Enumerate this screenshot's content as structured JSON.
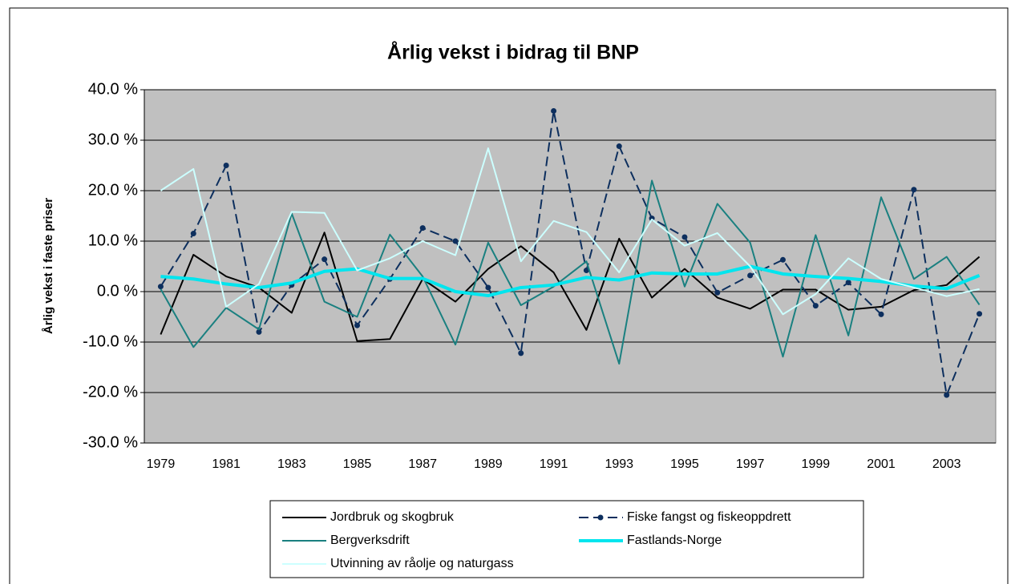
{
  "chart_data": {
    "type": "line",
    "title": "Årlig vekst i bidrag til BNP",
    "y_label": "Årlig vekst i faste priser",
    "categories": [
      "1979",
      null,
      "1981",
      null,
      "1983",
      null,
      "1985",
      null,
      "1987",
      null,
      "1989",
      null,
      "1991",
      null,
      "1993",
      null,
      "1995",
      null,
      "1997",
      null,
      "1999",
      null,
      "2001",
      null,
      "2003",
      null
    ],
    "ylim": [
      -30,
      40
    ],
    "yticks": [
      {
        "value": -30,
        "label": "-30.0 %"
      },
      {
        "value": -20,
        "label": "-20.0 %"
      },
      {
        "value": -10,
        "label": "-10.0 %"
      },
      {
        "value": 0,
        "label": "0.0 %"
      },
      {
        "value": 10,
        "label": "10.0 %"
      },
      {
        "value": 20,
        "label": "20.0 %"
      },
      {
        "value": 30,
        "label": "30.0 %"
      },
      {
        "value": 40,
        "label": "40.0 %"
      }
    ],
    "grid": true,
    "series": [
      {
        "name": "Jordbruk og skogbruk",
        "color": "#000000",
        "linestyle": "solid",
        "values": [
          -8.5,
          7.3,
          3,
          0.8,
          -4.2,
          11.7,
          -9.8,
          -9.4,
          2.5,
          -2,
          4.5,
          9,
          3.8,
          -7.6,
          10.5,
          -1.2,
          4.5,
          -1.2,
          -3.4,
          0.4,
          0.4,
          -3.6,
          -3,
          0.3,
          1.3,
          6.9
        ]
      },
      {
        "name": "Fiske fangst og fiskeoppdrett",
        "color": "#0d2f5e",
        "linestyle": "dashed",
        "marker": "circle",
        "values": [
          1,
          11.5,
          25,
          -8,
          1.3,
          6.4,
          -6.7,
          2.5,
          12.6,
          10,
          0.8,
          -12.2,
          35.8,
          4.2,
          28.8,
          14.5,
          10.8,
          -0.2,
          3.2,
          6.3,
          -2.8,
          1.8,
          -4.5,
          20.2,
          -20.5,
          -4.4
        ]
      },
      {
        "name": "Bergverksdrift",
        "color": "#1a8080",
        "linestyle": "solid",
        "values": [
          0.5,
          -11,
          -3.2,
          -7.5,
          15.5,
          -2,
          -5,
          11.3,
          3,
          -10.5,
          9.7,
          -2.7,
          1,
          6,
          -14.3,
          22,
          1,
          17.4,
          9.7,
          -12.9,
          11.2,
          -8.7,
          18.7,
          2.5,
          6.9,
          -2.6
        ]
      },
      {
        "name": "Fastlands-Norge",
        "color": "#00e5ee",
        "linestyle": "thick",
        "values": [
          3,
          2.5,
          1.5,
          0.8,
          1.7,
          4,
          4.5,
          2.6,
          2.6,
          0,
          -0.8,
          0.8,
          1.3,
          2.8,
          2.3,
          3.7,
          3.5,
          3.5,
          5,
          3.5,
          3,
          2.6,
          2,
          1.1,
          0.6,
          3.2
        ]
      },
      {
        "name": "Utvinning av råolje og naturgass",
        "color": "#ccffff",
        "linestyle": "solid",
        "values": [
          20,
          24.3,
          -3,
          1.5,
          15.8,
          15.6,
          4.2,
          6.6,
          10,
          7.2,
          28.4,
          6,
          14,
          11.8,
          3.8,
          14.3,
          9.1,
          11.6,
          5,
          -4.5,
          -0.5,
          6.6,
          2.5,
          0.8,
          -0.9,
          0.5
        ]
      }
    ]
  }
}
